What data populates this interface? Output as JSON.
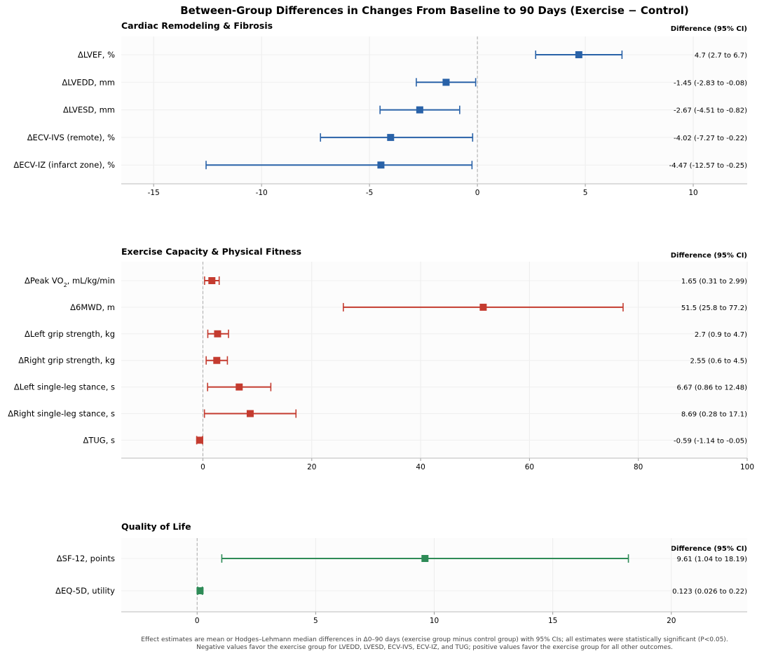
{
  "title": "Between-Group Differences in Changes From Baseline to 90 Days (Exercise − Control)",
  "footnote": [
    "Effect estimates are mean or Hodges–Lehmann median differences in Δ0–90 days (exercise group minus control group) with 95% CIs; all estimates were statistically significant (P<0.05).",
    "Negative values favor the exercise group for LVEDD, LVESD, ECV-IVS, ECV-IZ, and TUG; positive values favor the exercise group for all other outcomes."
  ],
  "colors": {
    "cardiac": "#2962a8",
    "exercise": "#c43b2f",
    "qol": "#2e8b57"
  },
  "chart_data": [
    {
      "type": "forest",
      "title": "Cardiac Remodeling & Fibrosis",
      "ci_header": "Difference (95% CI)",
      "color": "#2962a8",
      "xlim": [
        -16.5,
        12.5
      ],
      "xticks": [
        -15,
        -10,
        -5,
        0,
        5,
        10
      ],
      "rows": [
        {
          "label": "ΔLVEF, %",
          "est": 4.7,
          "lo": 2.7,
          "hi": 6.7,
          "ci": "4.7 (2.7 to 6.7)"
        },
        {
          "label": "ΔLVEDD, mm",
          "est": -1.45,
          "lo": -2.83,
          "hi": -0.08,
          "ci": "-1.45 (-2.83 to -0.08)"
        },
        {
          "label": "ΔLVESD, mm",
          "est": -2.67,
          "lo": -4.51,
          "hi": -0.82,
          "ci": "-2.67 (-4.51 to -0.82)"
        },
        {
          "label": "ΔECV-IVS (remote), %",
          "est": -4.02,
          "lo": -7.27,
          "hi": -0.22,
          "ci": "-4.02 (-7.27 to -0.22)"
        },
        {
          "label": "ΔECV-IZ (infarct zone), %",
          "est": -4.47,
          "lo": -12.57,
          "hi": -0.25,
          "ci": "-4.47 (-12.57 to -0.25)"
        }
      ]
    },
    {
      "type": "forest",
      "title": "Exercise Capacity & Physical Fitness",
      "ci_header": "Difference (95% CI)",
      "color": "#c43b2f",
      "xlim": [
        -15,
        100
      ],
      "xticks": [
        0,
        20,
        40,
        60,
        80,
        100
      ],
      "rows": [
        {
          "label": "ΔPeak VO₂, mL/kg/min",
          "est": 1.65,
          "lo": 0.31,
          "hi": 2.99,
          "ci": "1.65 (0.31 to 2.99)"
        },
        {
          "label": "Δ6MWD, m",
          "est": 51.5,
          "lo": 25.8,
          "hi": 77.2,
          "ci": "51.5 (25.8 to 77.2)"
        },
        {
          "label": "ΔLeft grip strength, kg",
          "est": 2.7,
          "lo": 0.9,
          "hi": 4.7,
          "ci": "2.7 (0.9 to 4.7)"
        },
        {
          "label": "ΔRight grip strength, kg",
          "est": 2.55,
          "lo": 0.6,
          "hi": 4.5,
          "ci": "2.55 (0.6 to 4.5)"
        },
        {
          "label": "ΔLeft single-leg stance, s",
          "est": 6.67,
          "lo": 0.86,
          "hi": 12.48,
          "ci": "6.67 (0.86 to 12.48)"
        },
        {
          "label": "ΔRight single-leg stance, s",
          "est": 8.69,
          "lo": 0.28,
          "hi": 17.1,
          "ci": "8.69 (0.28 to 17.1)"
        },
        {
          "label": "ΔTUG, s",
          "est": -0.59,
          "lo": -1.14,
          "hi": -0.05,
          "ci": "-0.59 (-1.14 to -0.05)"
        }
      ]
    },
    {
      "type": "forest",
      "title": "Quality of Life",
      "ci_header": "Difference (95% CI)",
      "color": "#2e8b57",
      "xlim": [
        -3.2,
        23.2
      ],
      "xticks": [
        0,
        5,
        10,
        15,
        20
      ],
      "rows": [
        {
          "label": "ΔSF-12, points",
          "est": 9.61,
          "lo": 1.04,
          "hi": 18.19,
          "ci": "9.61 (1.04 to 18.19)"
        },
        {
          "label": "ΔEQ-5D, utility",
          "est": 0.123,
          "lo": 0.026,
          "hi": 0.22,
          "ci": "0.123 (0.026 to 0.22)"
        }
      ]
    }
  ]
}
